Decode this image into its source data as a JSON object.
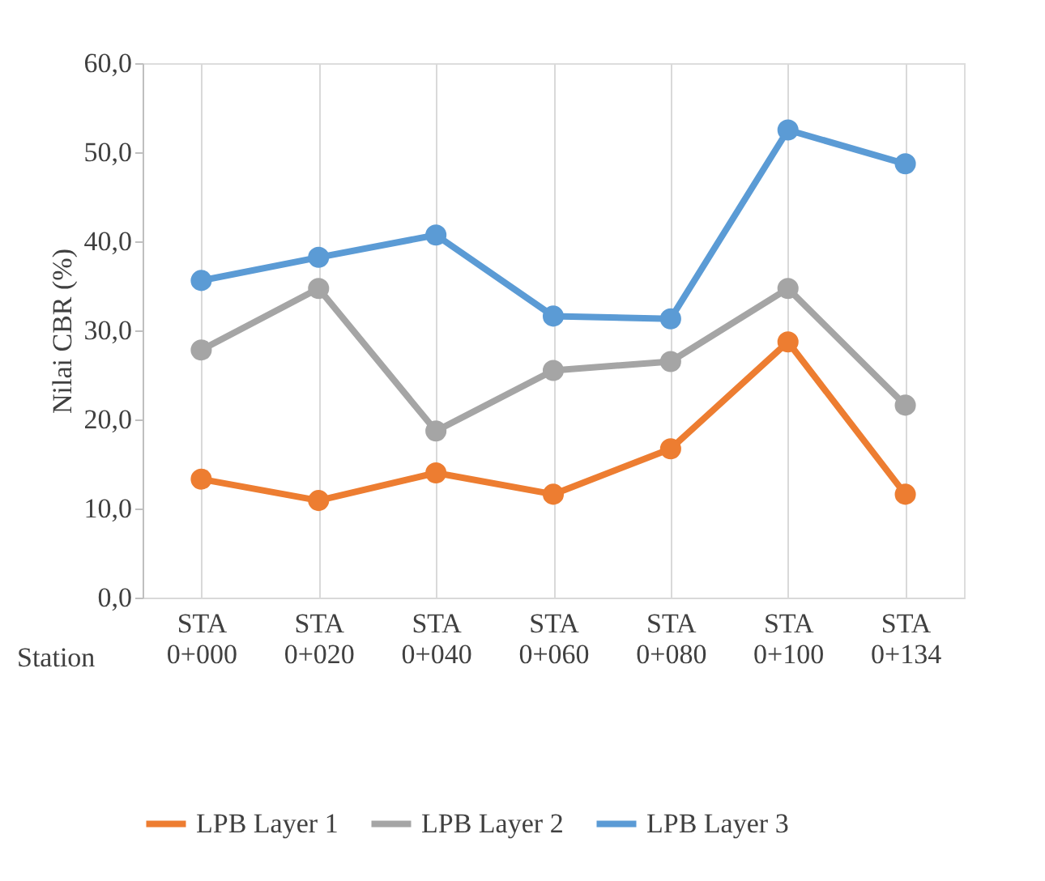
{
  "chart_data": {
    "type": "line",
    "ylabel": "Nilai CBR (%)",
    "xlabel": "Station",
    "categories": [
      "STA 0+000",
      "STA 0+020",
      "STA 0+040",
      "STA 0+060",
      "STA 0+080",
      "STA 0+100",
      "STA 0+134"
    ],
    "series": [
      {
        "name": "LPB Layer 1",
        "color": "#ed7d31",
        "values": [
          13.3,
          10.9,
          14.0,
          11.6,
          16.7,
          28.7,
          11.6
        ]
      },
      {
        "name": "LPB Layer 2",
        "color": "#a5a5a5",
        "values": [
          27.8,
          34.7,
          18.7,
          25.5,
          26.5,
          34.7,
          21.6
        ]
      },
      {
        "name": "LPB Layer 3",
        "color": "#5b9bd5",
        "values": [
          35.6,
          38.2,
          40.7,
          31.6,
          31.3,
          52.5,
          48.7
        ]
      }
    ],
    "ylim": [
      0,
      60
    ],
    "yticks": [
      {
        "value": 0,
        "label": "0,0"
      },
      {
        "value": 10,
        "label": "10,0"
      },
      {
        "value": 20,
        "label": "20,0"
      },
      {
        "value": 30,
        "label": "30,0"
      },
      {
        "value": 40,
        "label": "40,0"
      },
      {
        "value": 50,
        "label": "50,0"
      },
      {
        "value": 60,
        "label": "60,0"
      }
    ],
    "grid": "x",
    "legend": "bottom",
    "marker": "circle",
    "line_style": "solid"
  }
}
